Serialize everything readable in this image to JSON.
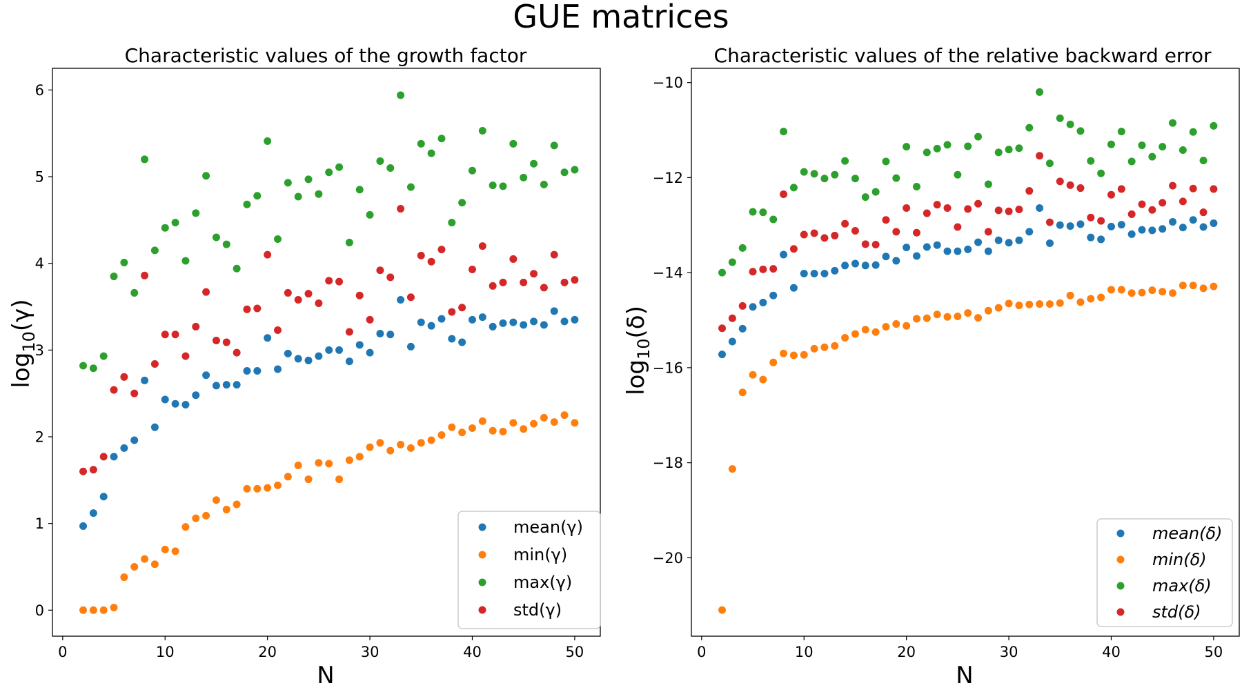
{
  "figure_title": "GUE matrices",
  "series_colors": [
    "#1f77b4",
    "#ff7f0e",
    "#2ca02c",
    "#d62728"
  ],
  "chart_data": [
    {
      "type": "scatter",
      "title": "Characteristic values of the growth factor",
      "xlabel": "N",
      "ylabel": "log10(γ)",
      "ylabel_base": "log",
      "ylabel_sub": "10",
      "ylabel_arg": "(γ)",
      "xlim": [
        -1,
        52.5
      ],
      "ylim": [
        -0.3,
        6.25
      ],
      "xticks": [
        0,
        10,
        20,
        30,
        40,
        50
      ],
      "yticks": [
        0,
        1,
        2,
        3,
        4,
        5,
        6
      ],
      "ytick_labels": [
        "0",
        "1",
        "2",
        "3",
        "4",
        "5",
        "6"
      ],
      "legend_position": "lower-right",
      "x": [
        2,
        3,
        4,
        5,
        6,
        7,
        8,
        9,
        10,
        11,
        12,
        13,
        14,
        15,
        16,
        17,
        18,
        19,
        20,
        21,
        22,
        23,
        24,
        25,
        26,
        27,
        28,
        29,
        30,
        31,
        32,
        33,
        34,
        35,
        36,
        37,
        38,
        39,
        40,
        41,
        42,
        43,
        44,
        45,
        46,
        47,
        48,
        49,
        50
      ],
      "series": [
        {
          "name": "mean(γ)",
          "values": [
            0.97,
            1.12,
            1.31,
            1.77,
            1.87,
            1.96,
            2.65,
            2.11,
            2.43,
            2.38,
            2.37,
            2.48,
            2.71,
            2.59,
            2.6,
            2.6,
            2.76,
            2.76,
            3.14,
            2.78,
            2.96,
            2.9,
            2.88,
            2.93,
            3.0,
            3.0,
            2.87,
            3.06,
            2.97,
            3.19,
            3.18,
            3.58,
            3.04,
            3.32,
            3.28,
            3.36,
            3.13,
            3.09,
            3.35,
            3.38,
            3.27,
            3.31,
            3.32,
            3.29,
            3.33,
            3.29,
            3.45,
            3.33,
            3.35
          ]
        },
        {
          "name": "min(γ)",
          "values": [
            0.0,
            0.0,
            0.0,
            0.03,
            0.38,
            0.5,
            0.59,
            0.53,
            0.7,
            0.68,
            0.96,
            1.06,
            1.09,
            1.27,
            1.16,
            1.22,
            1.4,
            1.4,
            1.41,
            1.44,
            1.54,
            1.67,
            1.51,
            1.7,
            1.69,
            1.51,
            1.73,
            1.77,
            1.88,
            1.93,
            1.84,
            1.91,
            1.87,
            1.93,
            1.96,
            2.02,
            2.11,
            2.05,
            2.1,
            2.18,
            2.07,
            2.06,
            2.16,
            2.09,
            2.15,
            2.22,
            2.17,
            2.25,
            2.16
          ]
        },
        {
          "name": "max(γ)",
          "values": [
            2.82,
            2.79,
            2.93,
            3.85,
            4.01,
            3.66,
            5.2,
            4.15,
            4.41,
            4.47,
            4.03,
            4.58,
            5.01,
            4.3,
            4.22,
            3.94,
            4.68,
            4.78,
            5.41,
            4.28,
            4.93,
            4.77,
            4.97,
            4.8,
            5.05,
            5.11,
            4.24,
            4.85,
            4.56,
            5.18,
            5.1,
            5.94,
            4.88,
            5.38,
            5.27,
            5.44,
            4.47,
            4.7,
            5.07,
            5.53,
            4.9,
            4.89,
            5.38,
            4.99,
            5.15,
            4.91,
            5.36,
            5.05,
            5.08
          ]
        },
        {
          "name": "std(γ)",
          "values": [
            1.6,
            1.62,
            1.77,
            2.54,
            2.69,
            2.5,
            3.86,
            2.84,
            3.18,
            3.18,
            2.93,
            3.27,
            3.67,
            3.11,
            3.09,
            2.97,
            3.47,
            3.48,
            4.1,
            3.23,
            3.66,
            3.58,
            3.65,
            3.54,
            3.8,
            3.79,
            3.21,
            3.63,
            3.35,
            3.92,
            3.84,
            4.63,
            3.61,
            4.09,
            4.02,
            4.16,
            3.44,
            3.49,
            3.93,
            4.2,
            3.74,
            3.78,
            4.05,
            3.78,
            3.88,
            3.72,
            4.1,
            3.78,
            3.81
          ]
        }
      ]
    },
    {
      "type": "scatter",
      "title": "Characteristic values of the relative backward error",
      "xlabel": "N",
      "ylabel": "log10(δ)",
      "ylabel_base": "log",
      "ylabel_sub": "10",
      "ylabel_arg": "(δ)",
      "xlim": [
        -1,
        52.5
      ],
      "ylim": [
        -21.65,
        -9.7
      ],
      "xticks": [
        0,
        10,
        20,
        30,
        40,
        50
      ],
      "yticks": [
        -20,
        -18,
        -16,
        -14,
        -12,
        -10
      ],
      "ytick_labels": [
        "−20",
        "−18",
        "−16",
        "−14",
        "−12",
        "−10"
      ],
      "legend_position": "lower-right",
      "legend_italic": true,
      "x": [
        2,
        3,
        4,
        5,
        6,
        7,
        8,
        9,
        10,
        11,
        12,
        13,
        14,
        15,
        16,
        17,
        18,
        19,
        20,
        21,
        22,
        23,
        24,
        25,
        26,
        27,
        28,
        29,
        30,
        31,
        32,
        33,
        34,
        35,
        36,
        37,
        38,
        39,
        40,
        41,
        42,
        43,
        44,
        45,
        46,
        47,
        48,
        49,
        50
      ],
      "series": [
        {
          "name": "mean(δ)",
          "values": [
            -15.72,
            -15.45,
            -15.18,
            -14.72,
            -14.63,
            -14.48,
            -13.62,
            -14.32,
            -14.02,
            -14.02,
            -14.02,
            -13.96,
            -13.85,
            -13.81,
            -13.85,
            -13.84,
            -13.66,
            -13.75,
            -13.47,
            -13.65,
            -13.46,
            -13.42,
            -13.55,
            -13.55,
            -13.51,
            -13.36,
            -13.55,
            -13.32,
            -13.37,
            -13.32,
            -13.14,
            -12.64,
            -13.38,
            -13.0,
            -13.02,
            -12.98,
            -13.26,
            -13.3,
            -13.03,
            -12.99,
            -13.19,
            -13.1,
            -13.11,
            -13.08,
            -12.93,
            -13.05,
            -12.89,
            -13.04,
            -12.96
          ]
        },
        {
          "name": "min(δ)",
          "values": [
            -21.1,
            -18.13,
            -16.52,
            -16.15,
            -16.25,
            -15.89,
            -15.7,
            -15.74,
            -15.73,
            -15.6,
            -15.57,
            -15.54,
            -15.37,
            -15.29,
            -15.2,
            -15.25,
            -15.14,
            -15.08,
            -15.12,
            -14.97,
            -14.96,
            -14.88,
            -14.93,
            -14.92,
            -14.85,
            -14.95,
            -14.8,
            -14.74,
            -14.65,
            -14.69,
            -14.67,
            -14.66,
            -14.66,
            -14.64,
            -14.48,
            -14.62,
            -14.55,
            -14.52,
            -14.36,
            -14.36,
            -14.43,
            -14.42,
            -14.37,
            -14.4,
            -14.43,
            -14.27,
            -14.27,
            -14.33,
            -14.29
          ]
        },
        {
          "name": "max(δ)",
          "values": [
            -14.0,
            -13.78,
            -13.48,
            -12.72,
            -12.73,
            -12.88,
            -11.03,
            -12.21,
            -11.88,
            -11.92,
            -12.02,
            -11.94,
            -11.65,
            -12.02,
            -12.41,
            -12.3,
            -11.66,
            -12.01,
            -11.35,
            -12.19,
            -11.47,
            -11.39,
            -11.31,
            -11.94,
            -11.34,
            -11.14,
            -12.14,
            -11.47,
            -11.41,
            -11.38,
            -10.95,
            -10.2,
            -11.7,
            -10.75,
            -10.88,
            -11.02,
            -11.65,
            -11.91,
            -11.3,
            -11.03,
            -11.66,
            -11.32,
            -11.56,
            -11.35,
            -10.85,
            -11.42,
            -11.04,
            -11.64,
            -10.91
          ]
        },
        {
          "name": "std(δ)",
          "values": [
            -15.17,
            -14.96,
            -14.7,
            -13.98,
            -13.93,
            -13.92,
            -12.35,
            -13.5,
            -13.2,
            -13.17,
            -13.27,
            -13.22,
            -12.97,
            -13.12,
            -13.4,
            -13.41,
            -12.89,
            -13.14,
            -12.64,
            -13.16,
            -12.75,
            -12.57,
            -12.64,
            -13.04,
            -12.66,
            -12.55,
            -13.14,
            -12.69,
            -12.71,
            -12.67,
            -12.28,
            -11.54,
            -12.94,
            -12.08,
            -12.16,
            -12.22,
            -12.84,
            -12.91,
            -12.36,
            -12.24,
            -12.77,
            -12.56,
            -12.68,
            -12.53,
            -12.17,
            -12.5,
            -12.23,
            -12.73,
            -12.24
          ]
        }
      ]
    }
  ]
}
